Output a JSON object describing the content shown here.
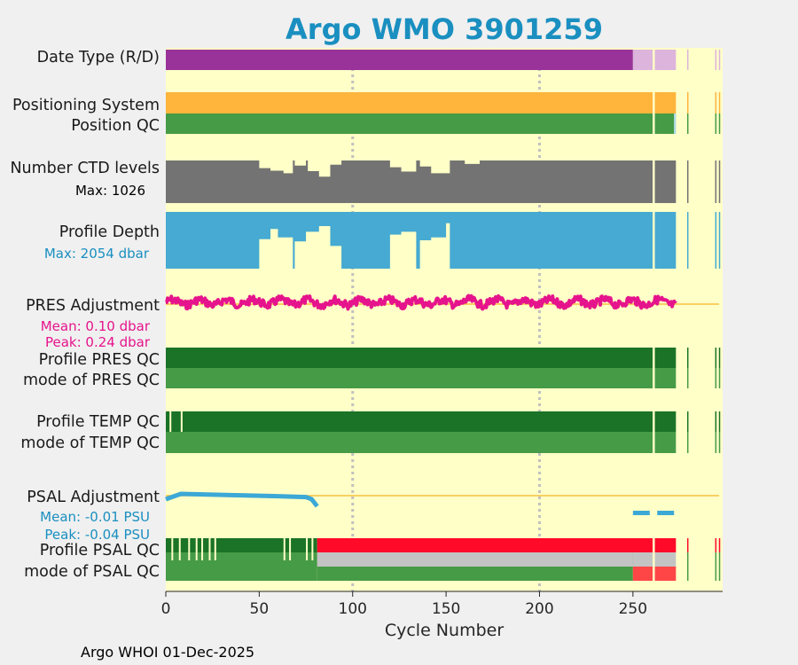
{
  "chart_data": {
    "type": "bar",
    "title": "Argo WMO 3901259",
    "xlabel": "Cycle Number",
    "xlim": [
      0,
      298
    ],
    "xticks": [
      0,
      50,
      100,
      150,
      200,
      250
    ],
    "grid_x": [
      100,
      200
    ],
    "footer": "Argo WHOI 01-Dec-2025",
    "rows": [
      {
        "key": "date_type",
        "label": "Date Type (R/D)"
      },
      {
        "key": "positioning",
        "label": "Positioning System"
      },
      {
        "key": "position_qc",
        "label": "Position QC"
      },
      {
        "key": "ctd_levels",
        "label": "Number CTD levels",
        "sub": "Max: 1026",
        "max": 1026
      },
      {
        "key": "profile_depth",
        "label": "Profile Depth",
        "sub": "Max: 2054 dbar",
        "max_dbar": 2054
      },
      {
        "key": "pres_adj",
        "label": "PRES Adjustment",
        "sub1": "Mean: 0.10 dbar",
        "sub2": "Peak: 0.24 dbar",
        "mean_dbar": 0.1,
        "peak_dbar": 0.24
      },
      {
        "key": "pres_qc",
        "label": "Profile PRES QC"
      },
      {
        "key": "pres_mode",
        "label": "mode of PRES QC"
      },
      {
        "key": "temp_qc",
        "label": "Profile TEMP QC"
      },
      {
        "key": "temp_mode",
        "label": "mode of TEMP QC"
      },
      {
        "key": "psal_adj",
        "label": "PSAL Adjustment",
        "sub1": "Mean: -0.01 PSU",
        "sub2": "Peak: -0.04 PSU",
        "mean_psu": -0.01,
        "peak_psu": -0.04
      },
      {
        "key": "psal_qc",
        "label": "Profile PSAL QC"
      },
      {
        "key": "psal_mode",
        "label": "mode of PSAL QC"
      }
    ],
    "segments": {
      "date_type": [
        {
          "from": 0,
          "to": 250,
          "category": "D"
        },
        {
          "from": 250,
          "to": 273,
          "category": "R"
        }
      ],
      "positioning": [
        {
          "from": 0,
          "to": 273,
          "category": "GPS"
        }
      ],
      "position_qc": [
        {
          "from": 0,
          "to": 272,
          "category": "1"
        },
        {
          "from": 272,
          "to": 273,
          "category": "light"
        }
      ],
      "pres_qc": [
        {
          "from": 0,
          "to": 273,
          "category": "A"
        }
      ],
      "pres_mode": [
        {
          "from": 0,
          "to": 273,
          "category": "1"
        }
      ],
      "temp_qc": [
        {
          "from": 0,
          "to": 273,
          "category": "A"
        }
      ],
      "temp_mode": [
        {
          "from": 0,
          "to": 273,
          "category": "1"
        }
      ],
      "psal_qc": [
        {
          "from": 0,
          "to": 81,
          "category": "A"
        },
        {
          "from": 81,
          "to": 273,
          "category": "F"
        }
      ],
      "psal_mode": [
        {
          "from": 0,
          "to": 81,
          "category": "1"
        },
        {
          "from": 81,
          "to": 250,
          "category": "mixed"
        },
        {
          "from": 250,
          "to": 273,
          "category": "4"
        }
      ]
    },
    "gaps": [
      261,
      274
    ],
    "late_cycles": [
      279,
      294,
      296
    ],
    "temp_qc_gaps": [
      2,
      8
    ],
    "psal_qc_gaps": [
      3,
      7,
      12,
      16,
      19,
      23,
      26,
      63,
      66,
      75,
      78
    ],
    "ctd_dips": [
      {
        "from": 50,
        "to": 56,
        "frac": 0.82
      },
      {
        "from": 56,
        "to": 63,
        "frac": 0.76
      },
      {
        "from": 63,
        "to": 68,
        "frac": 0.7
      },
      {
        "from": 69,
        "to": 75,
        "frac": 0.88
      },
      {
        "from": 76,
        "to": 82,
        "frac": 0.75
      },
      {
        "from": 82,
        "to": 88,
        "frac": 0.62
      },
      {
        "from": 88,
        "to": 94,
        "frac": 0.9
      },
      {
        "from": 120,
        "to": 126,
        "frac": 0.84
      },
      {
        "from": 126,
        "to": 134,
        "frac": 0.74
      },
      {
        "from": 136,
        "to": 142,
        "frac": 0.86
      },
      {
        "from": 142,
        "to": 152,
        "frac": 0.7
      },
      {
        "from": 160,
        "to": 168,
        "frac": 0.92
      }
    ],
    "depth_dips": [
      {
        "from": 50,
        "to": 56,
        "frac": 0.48
      },
      {
        "from": 56,
        "to": 60,
        "frac": 0.3
      },
      {
        "from": 60,
        "to": 68,
        "frac": 0.45
      },
      {
        "from": 69,
        "to": 75,
        "frac": 0.52
      },
      {
        "from": 75,
        "to": 82,
        "frac": 0.35
      },
      {
        "from": 82,
        "to": 88,
        "frac": 0.25
      },
      {
        "from": 88,
        "to": 94,
        "frac": 0.6
      },
      {
        "from": 120,
        "to": 126,
        "frac": 0.4
      },
      {
        "from": 126,
        "to": 134,
        "frac": 0.35
      },
      {
        "from": 136,
        "to": 142,
        "frac": 0.5
      },
      {
        "from": 142,
        "to": 150,
        "frac": 0.45
      },
      {
        "from": 150,
        "to": 152,
        "frac": 0.2
      }
    ],
    "pres_adj_end": 273,
    "psal_adj": {
      "x": [
        0,
        8,
        20,
        40,
        60,
        75,
        78,
        81
      ],
      "y": [
        0.0,
        0.03,
        0.027,
        0.022,
        0.017,
        0.012,
        0.0,
        -0.04
      ],
      "late_x": [
        [
          250,
          259
        ],
        [
          263,
          272
        ]
      ]
    },
    "colors": {
      "bg": "#ffffc8",
      "D": "#993399",
      "R": "#dcb4dc",
      "GPS": "#ffb43c",
      "qc_good": "#469b46",
      "qc_A": "#1a7326",
      "qc_F": "#ff0a28",
      "qc_mixed": "#c3c3c3",
      "qc_bad": "#ff4646",
      "light": "#a8d8e8",
      "ctd": "#737373",
      "depth": "#46aad2",
      "pres_adj": "#e6148c",
      "psal_adj": "#3ca8d6",
      "zero_line": "#f5c040",
      "title": "#1a8fc0",
      "sub_pres": "#e6148c",
      "sub_psal": "#1a8fc0"
    }
  }
}
